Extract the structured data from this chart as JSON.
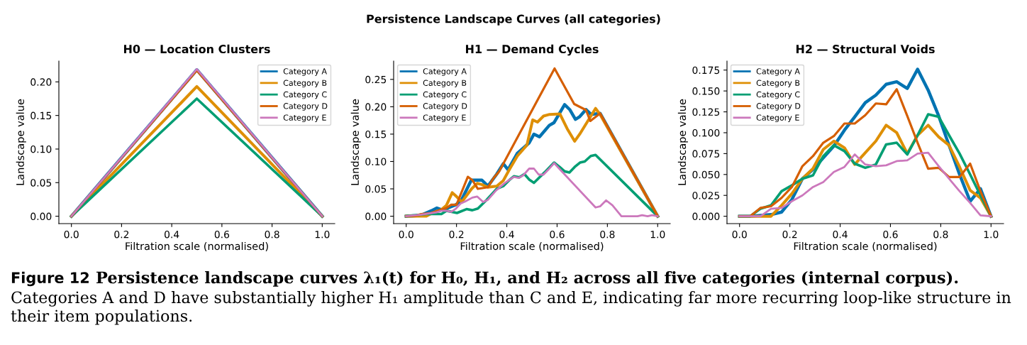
{
  "chart_data": [
    {
      "type": "other",
      "title": "Persistence Landscape Curves (all categories)",
      "annotations": [
        "Figure 12",
        "Persistence landscape curves λ₁(t) for H₀, H₁, and H₂ across all five categories (internal corpus).",
        "Categories A and D have substantially higher H₁ amplitude than C and E, indicating far more recurring loop-like structure in their item populations."
      ]
    },
    {
      "type": "line",
      "title": "H0 — Location Clusters",
      "xlabel": "Filtration scale (normalised)",
      "ylabel": "Landscape value",
      "legend": "top right",
      "x": [
        0,
        0.5,
        1
      ],
      "series": [
        {
          "name": "Category A",
          "color": "#0173b2",
          "values": [
            0,
            0.218,
            0
          ]
        },
        {
          "name": "Category B",
          "color": "#de8f05",
          "values": [
            0,
            0.193,
            0
          ]
        },
        {
          "name": "Category C",
          "color": "#029e73",
          "values": [
            0,
            0.175,
            0
          ]
        },
        {
          "name": "Category D",
          "color": "#d55e00",
          "values": [
            0,
            0.217,
            0
          ]
        },
        {
          "name": "Category E",
          "color": "#cc78bc",
          "values": [
            0,
            0.219,
            0
          ]
        }
      ],
      "xlim": [
        -0.05,
        1.05
      ],
      "ylim": [
        -0.011,
        0.231
      ],
      "xticks": [
        {
          "value": 0,
          "label": "0.0"
        },
        {
          "value": 0.2,
          "label": "0.2"
        },
        {
          "value": 0.4,
          "label": "0.4"
        },
        {
          "value": 0.6,
          "label": "0.6"
        },
        {
          "value": 0.8,
          "label": "0.8"
        },
        {
          "value": 1,
          "label": "1.0"
        }
      ],
      "yticks": [
        {
          "value": 0,
          "label": "0.00"
        },
        {
          "value": 0.05,
          "label": "0.05"
        },
        {
          "value": 0.1,
          "label": "0.10"
        },
        {
          "value": 0.15,
          "label": "0.15"
        },
        {
          "value": 0.2,
          "label": "0.20"
        }
      ]
    },
    {
      "type": "line",
      "title": "H1 — Demand Cycles",
      "xlabel": "Filtration scale (normalised)",
      "ylabel": "Landscape value",
      "legend": "top left",
      "series": [
        {
          "name": "Category A",
          "color": "#0173b2",
          "x": [
            0,
            0.04,
            0.06,
            0.1,
            0.122,
            0.14,
            0.16,
            0.198,
            0.22,
            0.259,
            0.301,
            0.325,
            0.36,
            0.386,
            0.405,
            0.442,
            0.489,
            0.508,
            0.53,
            0.569,
            0.588,
            0.63,
            0.65,
            0.673,
            0.69,
            0.715,
            0.735,
            0.771,
            1
          ],
          "values": [
            0,
            0.001,
            0.002,
            0.01,
            0.015,
            0.012,
            0.014,
            0.021,
            0.03,
            0.066,
            0.066,
            0.055,
            0.077,
            0.096,
            0.085,
            0.115,
            0.134,
            0.15,
            0.145,
            0.166,
            0.171,
            0.204,
            0.195,
            0.177,
            0.182,
            0.195,
            0.186,
            0.188,
            0
          ]
        },
        {
          "name": "Category B",
          "color": "#de8f05",
          "x": [
            0,
            0.08,
            0.1,
            0.14,
            0.16,
            0.183,
            0.2,
            0.221,
            0.26,
            0.282,
            0.3,
            0.325,
            0.36,
            0.386,
            0.41,
            0.442,
            0.48,
            0.503,
            0.522,
            0.546,
            0.57,
            0.611,
            0.64,
            0.67,
            0.69,
            0.753,
            0.771,
            1
          ],
          "values": [
            0,
            0,
            0.005,
            0.012,
            0.02,
            0.043,
            0.036,
            0.026,
            0.05,
            0.06,
            0.058,
            0.053,
            0.055,
            0.065,
            0.085,
            0.11,
            0.13,
            0.176,
            0.172,
            0.183,
            0.186,
            0.187,
            0.16,
            0.137,
            0.15,
            0.197,
            0.186,
            0
          ]
        },
        {
          "name": "Category C",
          "color": "#029e73",
          "x": [
            0,
            0.08,
            0.14,
            0.16,
            0.202,
            0.24,
            0.263,
            0.285,
            0.32,
            0.36,
            0.386,
            0.41,
            0.428,
            0.45,
            0.47,
            0.489,
            0.508,
            0.55,
            0.588,
            0.61,
            0.63,
            0.649,
            0.67,
            0.691,
            0.71,
            0.734,
            0.753,
            1
          ],
          "values": [
            0,
            0.004,
            0.004,
            0.01,
            0.006,
            0.013,
            0.011,
            0.014,
            0.03,
            0.05,
            0.055,
            0.066,
            0.073,
            0.071,
            0.077,
            0.067,
            0.061,
            0.08,
            0.098,
            0.09,
            0.082,
            0.08,
            0.09,
            0.098,
            0.1,
            0.11,
            0.112,
            0
          ]
        },
        {
          "name": "Category D",
          "color": "#d55e00",
          "x": [
            0,
            0.04,
            0.06,
            0.1,
            0.14,
            0.16,
            0.179,
            0.2,
            0.245,
            0.263,
            0.285,
            0.325,
            0.348,
            0.37,
            0.59,
            0.668,
            0.715,
            0.732,
            0.771,
            1
          ],
          "values": [
            0,
            0.001,
            0.004,
            0.006,
            0.012,
            0.015,
            0.021,
            0.021,
            0.072,
            0.066,
            0.05,
            0.053,
            0.07,
            0.082,
            0.27,
            0.205,
            0.194,
            0.174,
            0.188,
            0
          ]
        },
        {
          "name": "Category E",
          "color": "#cc78bc",
          "x": [
            0,
            0.06,
            0.12,
            0.14,
            0.16,
            0.179,
            0.198,
            0.216,
            0.235,
            0.263,
            0.282,
            0.306,
            0.325,
            0.357,
            0.39,
            0.428,
            0.447,
            0.466,
            0.489,
            0.508,
            0.527,
            0.546,
            0.565,
            0.588,
            0.753,
            0.771,
            0.795,
            0.82,
            0.856,
            0.92,
            0.938,
            0.96,
            0.978,
            1
          ],
          "values": [
            0,
            0.003,
            0.007,
            0.01,
            0.01,
            0.008,
            0.014,
            0.023,
            0.027,
            0.034,
            0.036,
            0.026,
            0.03,
            0.047,
            0.06,
            0.072,
            0.07,
            0.075,
            0.087,
            0.087,
            0.076,
            0.076,
            0.085,
            0.097,
            0.016,
            0.018,
            0.029,
            0.02,
            0,
            0,
            0.002,
            0,
            0.002,
            0
          ]
        }
      ],
      "xlim": [
        -0.05,
        1.05
      ],
      "ylim": [
        -0.0135,
        0.2835
      ],
      "xticks": [
        {
          "value": 0,
          "label": "0.0"
        },
        {
          "value": 0.2,
          "label": "0.2"
        },
        {
          "value": 0.4,
          "label": "0.4"
        },
        {
          "value": 0.6,
          "label": "0.6"
        },
        {
          "value": 0.8,
          "label": "0.8"
        },
        {
          "value": 1,
          "label": "1.0"
        }
      ],
      "yticks": [
        {
          "value": 0,
          "label": "0.00"
        },
        {
          "value": 0.05,
          "label": "0.05"
        },
        {
          "value": 0.1,
          "label": "0.10"
        },
        {
          "value": 0.15,
          "label": "0.15"
        },
        {
          "value": 0.2,
          "label": "0.20"
        },
        {
          "value": 0.25,
          "label": "0.25"
        }
      ]
    },
    {
      "type": "line",
      "title": "H2 — Structural Voids",
      "xlabel": "Filtration scale (normalised)",
      "ylabel": "Landscape value",
      "legend": "top left",
      "x": [
        0,
        0.042,
        0.083,
        0.125,
        0.167,
        0.208,
        0.25,
        0.292,
        0.333,
        0.375,
        0.417,
        0.458,
        0.5,
        0.542,
        0.583,
        0.625,
        0.667,
        0.708,
        0.75,
        0.792,
        0.833,
        0.875,
        0.917,
        0.958,
        1
      ],
      "series": [
        {
          "name": "Category A",
          "color": "#0173b2",
          "values": [
            0,
            0,
            0.001,
            0.002,
            0.005,
            0.02,
            0.045,
            0.056,
            0.07,
            0.084,
            0.103,
            0.119,
            0.136,
            0.145,
            0.158,
            0.161,
            0.153,
            0.176,
            0.151,
            0.12,
            0.085,
            0.05,
            0.018,
            0.033,
            0
          ]
        },
        {
          "name": "Category B",
          "color": "#de8f05",
          "values": [
            0,
            0,
            0,
            0,
            0.013,
            0.027,
            0.045,
            0.057,
            0.08,
            0.09,
            0.082,
            0.062,
            0.076,
            0.09,
            0.109,
            0.1,
            0.075,
            0.097,
            0.109,
            0.095,
            0.085,
            0.059,
            0.031,
            0.022,
            0
          ]
        },
        {
          "name": "Category C",
          "color": "#029e73",
          "values": [
            0,
            0,
            0.009,
            0.013,
            0.03,
            0.037,
            0.045,
            0.049,
            0.072,
            0.085,
            0.078,
            0.063,
            0.058,
            0.062,
            0.086,
            0.088,
            0.074,
            0.097,
            0.122,
            0.119,
            0.097,
            0.075,
            0.05,
            0.025,
            0
          ]
        },
        {
          "name": "Category D",
          "color": "#d55e00",
          "values": [
            0,
            0,
            0.01,
            0.012,
            0.022,
            0.035,
            0.06,
            0.072,
            0.088,
            0.096,
            0.111,
            0.111,
            0.121,
            0.135,
            0.134,
            0.152,
            0.12,
            0.088,
            0.057,
            0.058,
            0.047,
            0.047,
            0.063,
            0.03,
            0
          ]
        },
        {
          "name": "Category E",
          "color": "#cc78bc",
          "values": [
            0,
            0,
            0,
            0.009,
            0.01,
            0.018,
            0.025,
            0.035,
            0.041,
            0.053,
            0.059,
            0.074,
            0.062,
            0.06,
            0.061,
            0.066,
            0.067,
            0.075,
            0.076,
            0.06,
            0.045,
            0.03,
            0.016,
            0.001,
            0
          ]
        }
      ],
      "xlim": [
        -0.05,
        1.05
      ],
      "ylim": [
        -0.0088,
        0.1858
      ],
      "xticks": [
        {
          "value": 0,
          "label": "0.0"
        },
        {
          "value": 0.2,
          "label": "0.2"
        },
        {
          "value": 0.4,
          "label": "0.4"
        },
        {
          "value": 0.6,
          "label": "0.6"
        },
        {
          "value": 0.8,
          "label": "0.8"
        },
        {
          "value": 1,
          "label": "1.0"
        }
      ],
      "yticks": [
        {
          "value": 0,
          "label": "0.000"
        },
        {
          "value": 0.025,
          "label": "0.025"
        },
        {
          "value": 0.05,
          "label": "0.050"
        },
        {
          "value": 0.075,
          "label": "0.075"
        },
        {
          "value": 0.1,
          "label": "0.100"
        },
        {
          "value": 0.125,
          "label": "0.125"
        },
        {
          "value": 0.15,
          "label": "0.150"
        },
        {
          "value": 0.175,
          "label": "0.175"
        }
      ]
    }
  ]
}
